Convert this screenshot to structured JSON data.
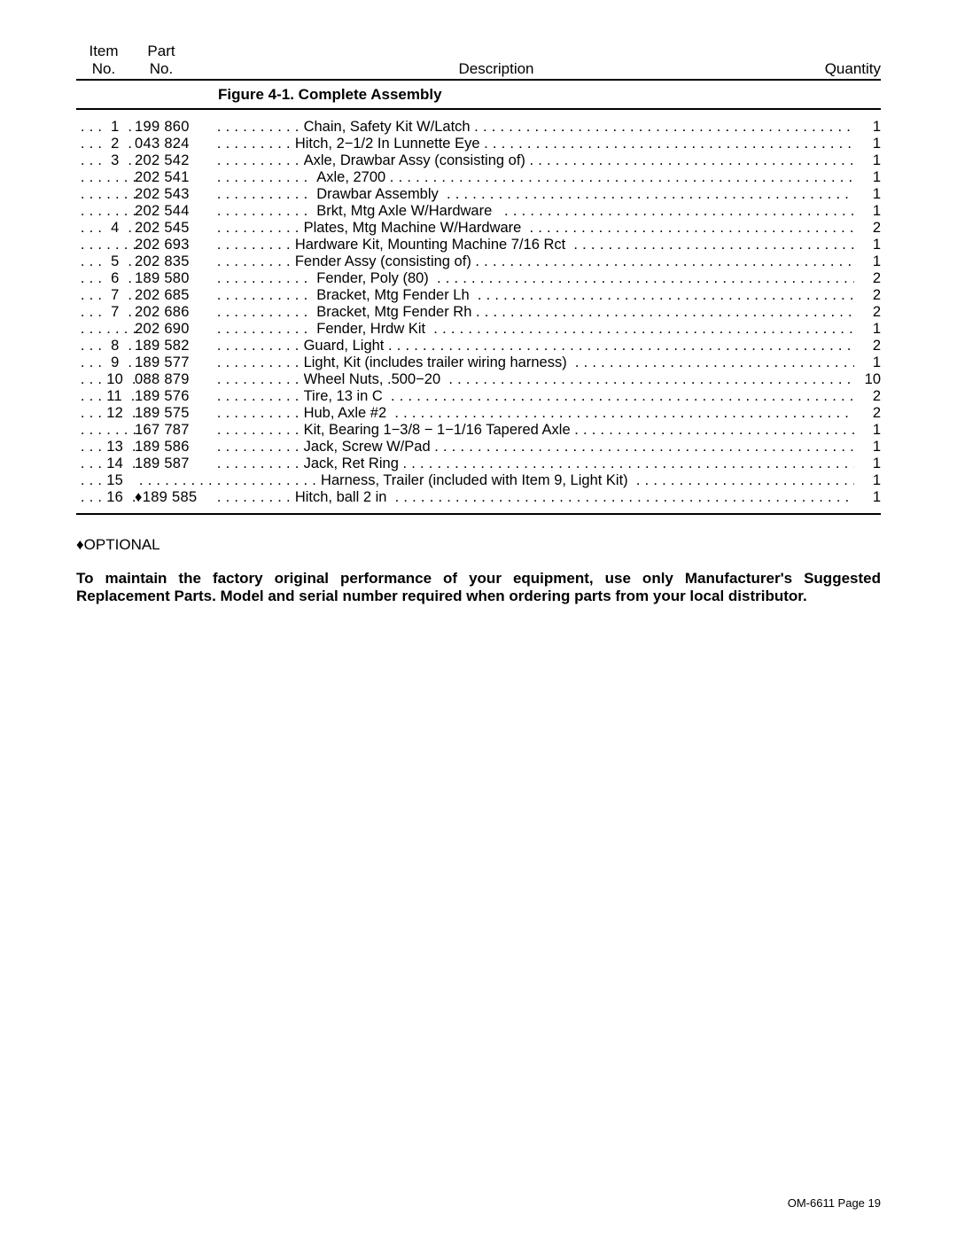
{
  "header": {
    "item_label_l1": "Item",
    "item_label_l2": "No.",
    "part_label_l1": "Part",
    "part_label_l2": "No.",
    "description_label": "Description",
    "quantity_label": "Quantity"
  },
  "figure_title": "Figure 4-1. Complete Assembly",
  "parts": [
    {
      "item": " . . .  1  . ",
      "part": "199 860  ",
      "dots1": " . . . . . . . . . . ",
      "desc": "Chain, Safety Kit W/Latch ",
      "qty": "1"
    },
    {
      "item": " . . .  2  . ",
      "part": "043 824   ",
      "dots1": " . . . . . . . . . ",
      "desc": "Hitch, 2−1/2 In Lunnette Eye ",
      "qty": "1"
    },
    {
      "item": " . . .  3  . ",
      "part": "202 542  ",
      "dots1": " . . . . . . . . . . ",
      "desc": "Axle, Drawbar Assy (consisting of) ",
      "qty": "1"
    },
    {
      "item": " . . . . . . . ",
      "part": "202 541  ",
      "dots1": " . . . . . . . . . . .  ",
      "desc": "Axle, 2700 ",
      "qty": "1"
    },
    {
      "item": " . . . . . . . ",
      "part": "202 543  ",
      "dots1": " . . . . . . . . . . .  ",
      "desc": "Drawbar Assembly  ",
      "qty": "1"
    },
    {
      "item": " . . . . . . . ",
      "part": "202 544  ",
      "dots1": " . . . . . . . . . . .  ",
      "desc": "Brkt, Mtg Axle W/Hardware   ",
      "qty": "1"
    },
    {
      "item": " . . .  4  . ",
      "part": "202 545  ",
      "dots1": " . . . . . . . . . . ",
      "desc": "Plates, Mtg Machine W/Hardware  ",
      "qty": "2"
    },
    {
      "item": " . . . . . . . ",
      "part": "202 693   ",
      "dots1": " . . . . . . . . . ",
      "desc": "Hardware Kit, Mounting Machine 7/16 Rct  ",
      "qty": "1"
    },
    {
      "item": " . . .  5  . ",
      "part": "202 835   ",
      "dots1": " . . . . . . . . . ",
      "desc": "Fender Assy (consisting of) ",
      "qty": "1"
    },
    {
      "item": " . . .  6  . ",
      "part": "189 580  ",
      "dots1": " . . . . . . . . . . .  ",
      "desc": "Fender, Poly (80)  ",
      "qty": "2"
    },
    {
      "item": " . . .  7  . ",
      "part": "202 685  ",
      "dots1": " . . . . . . . . . . .  ",
      "desc": "Bracket, Mtg Fender Lh  ",
      "qty": "2"
    },
    {
      "item": " . . .  7  . ",
      "part": "202 686  ",
      "dots1": " . . . . . . . . . . .  ",
      "desc": "Bracket, Mtg Fender Rh ",
      "qty": "2"
    },
    {
      "item": " . . . . . . . ",
      "part": "202 690  ",
      "dots1": " . . . . . . . . . . .  ",
      "desc": "Fender, Hrdw Kit  ",
      "qty": "1"
    },
    {
      "item": " . . .  8  . ",
      "part": "189 582  ",
      "dots1": " . . . . . . . . . . ",
      "desc": "Guard, Light ",
      "qty": "2"
    },
    {
      "item": " . . .  9  . ",
      "part": "189 577  ",
      "dots1": " . . . . . . . . . . ",
      "desc": "Light, Kit (includes trailer wiring harness)  ",
      "qty": "1"
    },
    {
      "item": " . . . 10  . ",
      "part": "088 879  ",
      "dots1": " . . . . . . . . . . ",
      "desc": "Wheel Nuts, .500−20  ",
      "qty": "10"
    },
    {
      "item": " . . . 11  . ",
      "part": "189 576  ",
      "dots1": " . . . . . . . . . . ",
      "desc": "Tire, 13 in C  ",
      "qty": "2"
    },
    {
      "item": " . . . 12  . ",
      "part": "189 575  ",
      "dots1": " . . . . . . . . . . ",
      "desc": "Hub, Axle #2  ",
      "qty": "2"
    },
    {
      "item": " . . . . . . . ",
      "part": "167 787  ",
      "dots1": " . . . . . . . . . . ",
      "desc": "Kit, Bearing 1−3/8 − 1−1/16 Tapered Axle ",
      "qty": "1"
    },
    {
      "item": " . . . 13  . ",
      "part": "189 586  ",
      "dots1": " . . . . . . . . . . ",
      "desc": "Jack, Screw W/Pad ",
      "qty": "1"
    },
    {
      "item": " . . . 14  . ",
      "part": "189 587  ",
      "dots1": " . . . . . . . . . . ",
      "desc": "Jack, Ret Ring ",
      "qty": "1"
    },
    {
      "item": " . . . 15 ",
      "part": "",
      "dots1": " . . . . . . . . . . . . . . . . . . . . . ",
      "desc": "Harness, Trailer (included with Item 9, Light Kit)  ",
      "qty": "1"
    },
    {
      "item": " . . . 16  . ",
      "part": "♦189 585  ",
      "dots1": " . . . . . . . . . ",
      "desc": "Hitch, ball 2 in  ",
      "qty": "1"
    }
  ],
  "optional_label": "♦OPTIONAL",
  "footer_note": "To maintain the factory original performance of your equipment,  use only Manufacturer's Suggested Replacement Parts. Model and serial number required when ordering parts from your local distributor.",
  "page_number": "OM-6611 Page 19"
}
